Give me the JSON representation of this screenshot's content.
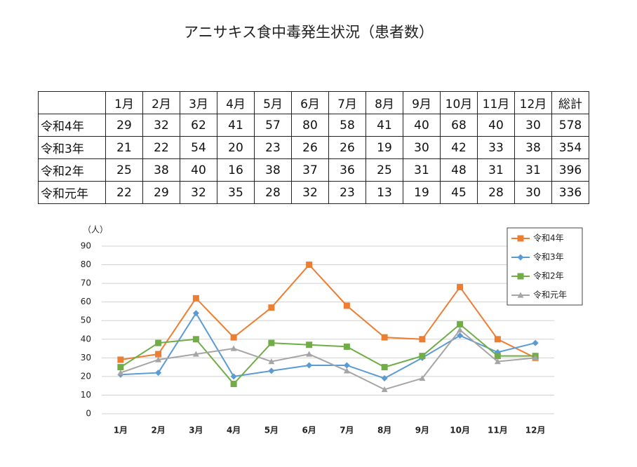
{
  "title": "アニサキス食中毒発生状況（患者数）",
  "table": {
    "header": [
      "1月",
      "2月",
      "3月",
      "4月",
      "5月",
      "6月",
      "7月",
      "8月",
      "9月",
      "10月",
      "11月",
      "12月",
      "総計"
    ],
    "rows": [
      [
        "令和4年",
        29,
        32,
        62,
        41,
        57,
        80,
        58,
        41,
        40,
        68,
        40,
        30,
        578
      ],
      [
        "令和3年",
        21,
        22,
        54,
        20,
        23,
        26,
        26,
        19,
        30,
        42,
        33,
        38,
        354
      ],
      [
        "令和2年",
        25,
        38,
        40,
        16,
        38,
        37,
        36,
        25,
        31,
        48,
        31,
        31,
        396
      ],
      [
        "令和元年",
        22,
        29,
        32,
        35,
        28,
        32,
        23,
        13,
        19,
        45,
        28,
        30,
        336
      ]
    ]
  },
  "chart_data": {
    "type": "line",
    "y_label": "（人）",
    "categories": [
      "1月",
      "2月",
      "3月",
      "4月",
      "5月",
      "6月",
      "7月",
      "8月",
      "9月",
      "10月",
      "11月",
      "12月"
    ],
    "ylim": [
      0,
      90
    ],
    "yticks": [
      0,
      10,
      20,
      30,
      40,
      50,
      60,
      70,
      80,
      90
    ],
    "grid": true,
    "legend": "top-right",
    "series": [
      {
        "name": "令和4年",
        "color": "#ED7D31",
        "marker": "square",
        "values": [
          29,
          32,
          62,
          41,
          57,
          80,
          58,
          41,
          40,
          68,
          40,
          30
        ]
      },
      {
        "name": "令和3年",
        "color": "#5B9BD5",
        "marker": "diamond",
        "values": [
          21,
          22,
          54,
          20,
          23,
          26,
          26,
          19,
          30,
          42,
          33,
          38
        ]
      },
      {
        "name": "令和2年",
        "color": "#70AD47",
        "marker": "square",
        "values": [
          25,
          38,
          40,
          16,
          38,
          37,
          36,
          25,
          31,
          48,
          31,
          31
        ]
      },
      {
        "name": "令和元年",
        "color": "#A5A5A5",
        "marker": "triangle",
        "values": [
          22,
          29,
          32,
          35,
          28,
          32,
          23,
          13,
          19,
          45,
          28,
          30
        ]
      }
    ]
  }
}
